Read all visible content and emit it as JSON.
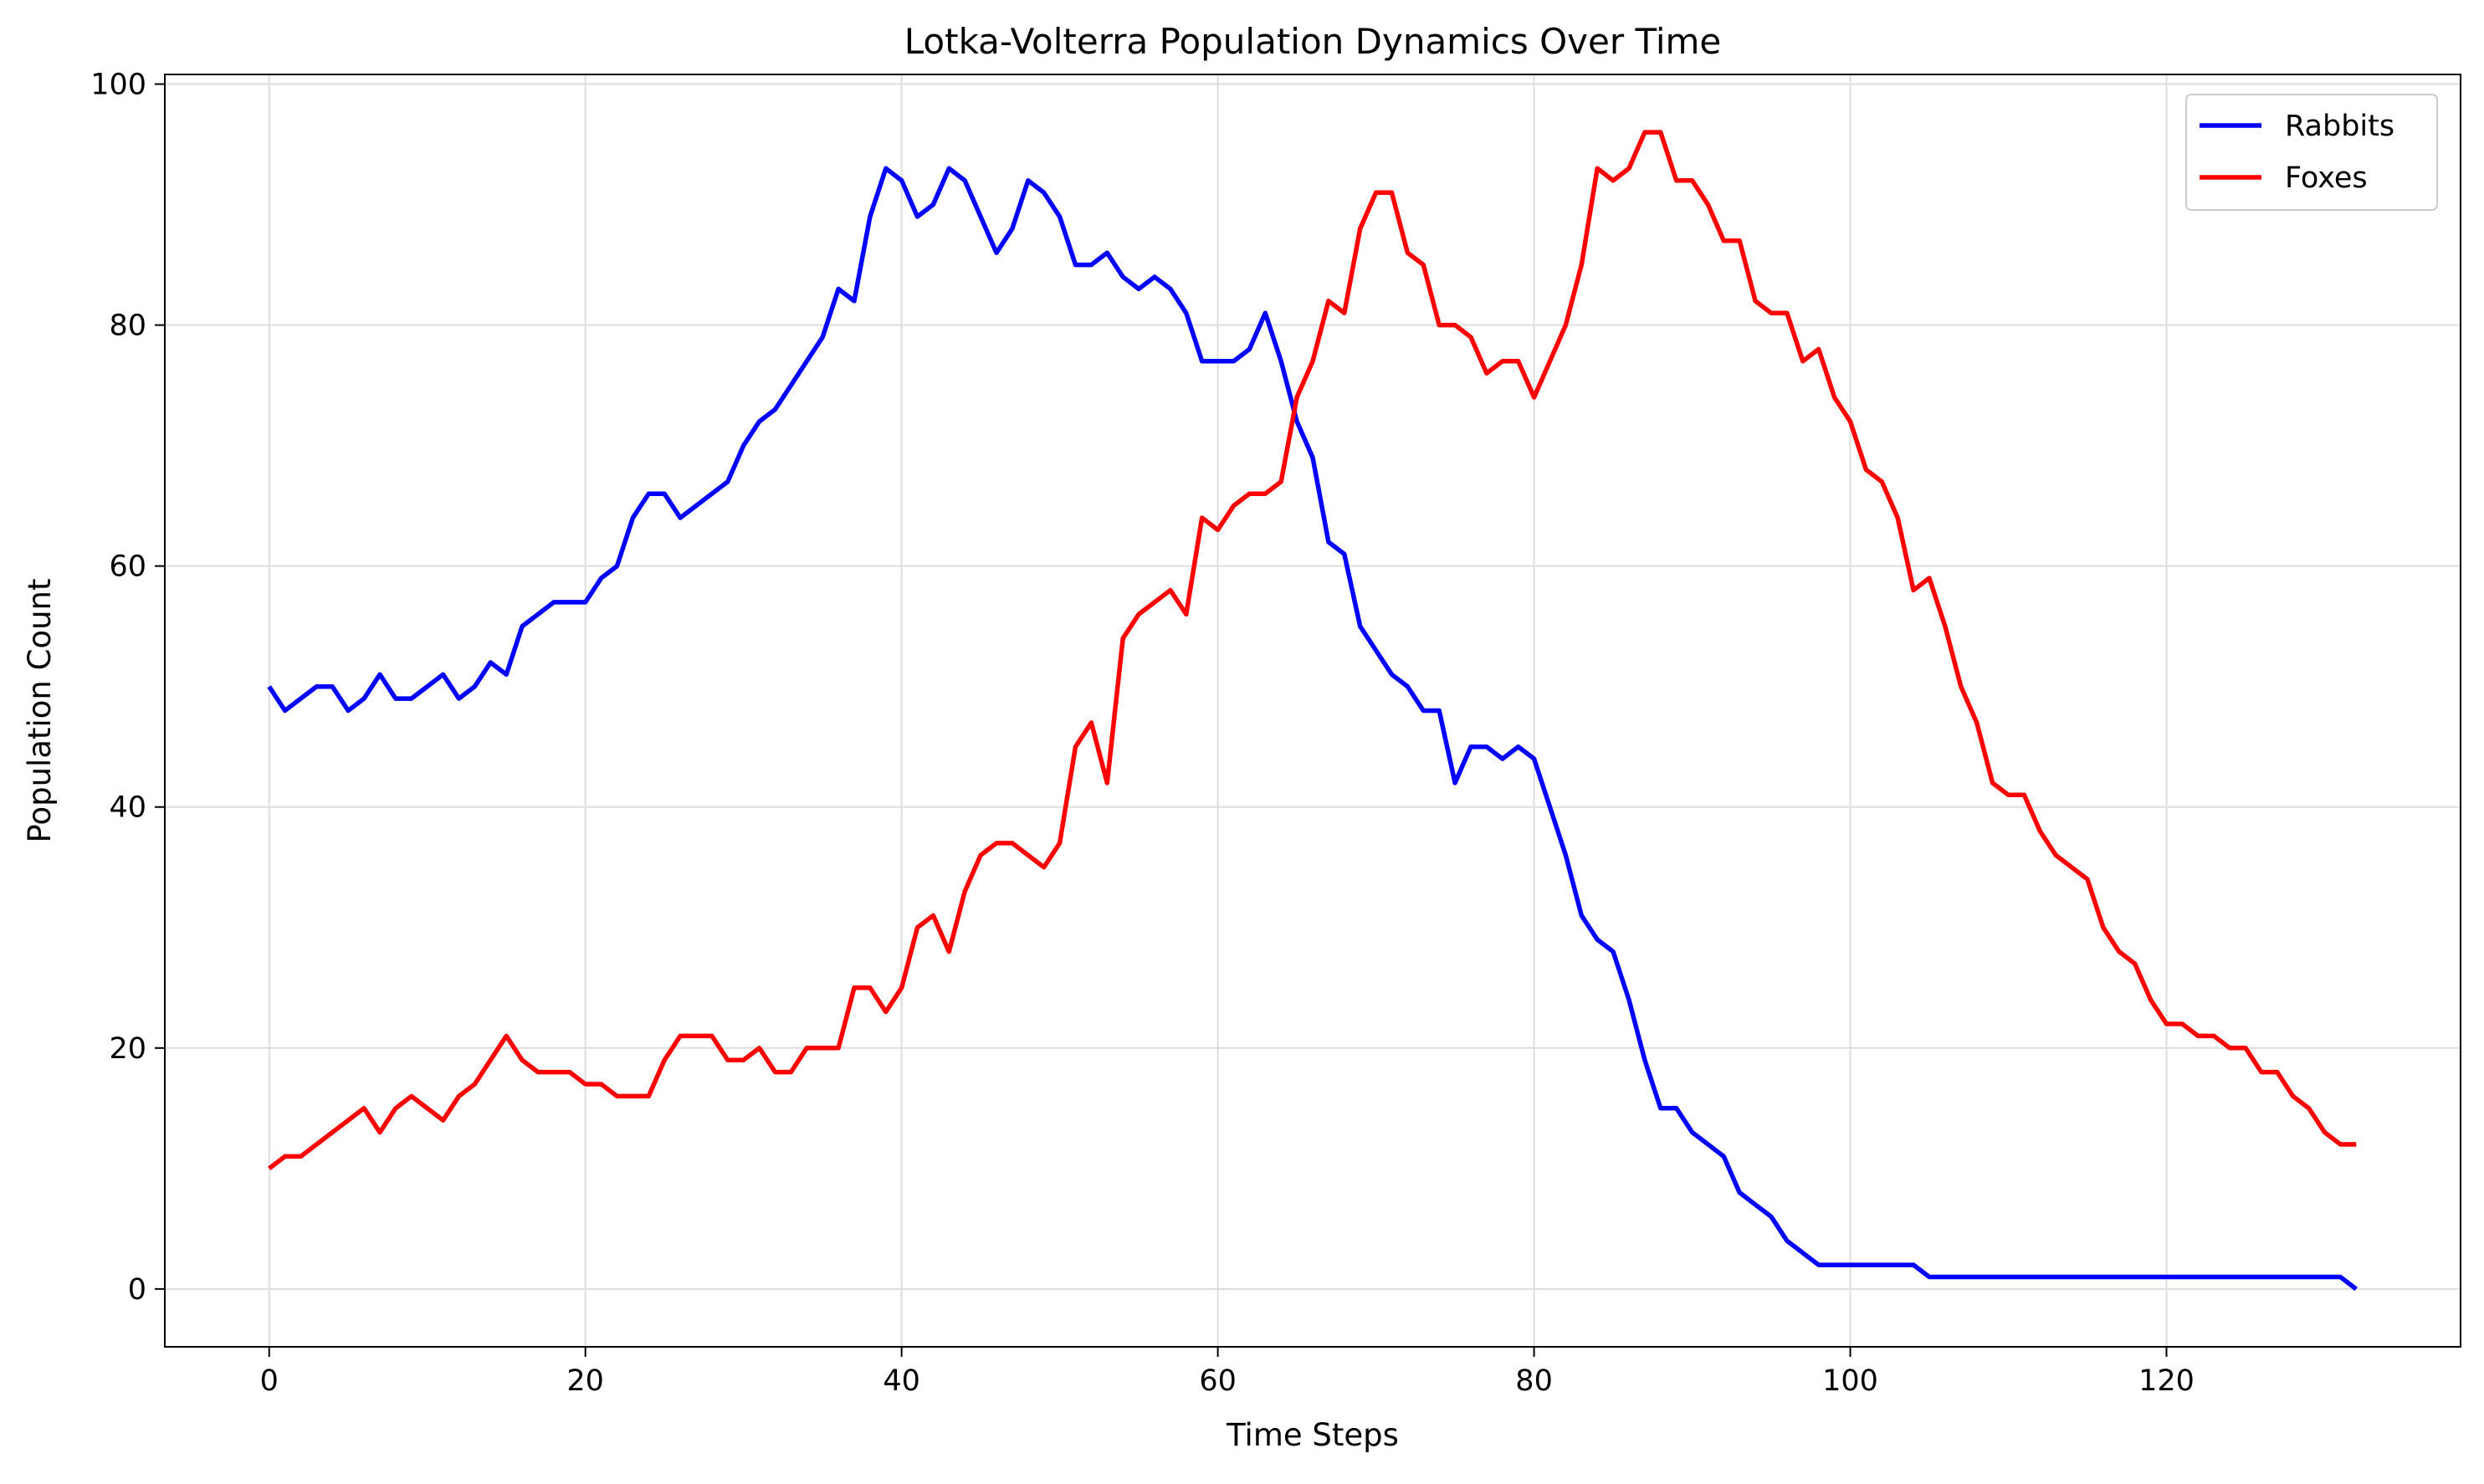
{
  "chart_data": {
    "type": "line",
    "title": "Lotka-Volterra Population Dynamics Over Time",
    "xlabel": "Time Steps",
    "ylabel": "Population Count",
    "xlim": [
      -6.6,
      138.6
    ],
    "ylim": [
      -4.8,
      100.8
    ],
    "xticks": [
      0,
      20,
      40,
      60,
      80,
      100,
      120
    ],
    "yticks": [
      0,
      20,
      40,
      60,
      80,
      100
    ],
    "grid": true,
    "legend": "top-right",
    "x": [
      0,
      1,
      2,
      3,
      4,
      5,
      6,
      7,
      8,
      9,
      10,
      11,
      12,
      13,
      14,
      15,
      16,
      17,
      18,
      19,
      20,
      21,
      22,
      23,
      24,
      25,
      26,
      27,
      28,
      29,
      30,
      31,
      32,
      33,
      34,
      35,
      36,
      37,
      38,
      39,
      40,
      41,
      42,
      43,
      44,
      45,
      46,
      47,
      48,
      49,
      50,
      51,
      52,
      53,
      54,
      55,
      56,
      57,
      58,
      59,
      60,
      61,
      62,
      63,
      64,
      65,
      66,
      67,
      68,
      69,
      70,
      71,
      72,
      73,
      74,
      75,
      76,
      77,
      78,
      79,
      80,
      81,
      82,
      83,
      84,
      85,
      86,
      87,
      88,
      89,
      90,
      91,
      92,
      93,
      94,
      95,
      96,
      97,
      98,
      99,
      100,
      101,
      102,
      103,
      104,
      105,
      106,
      107,
      108,
      109,
      110,
      111,
      112,
      113,
      114,
      115,
      116,
      117,
      118,
      119,
      120,
      121,
      122,
      123,
      124,
      125,
      126,
      127,
      128,
      129,
      130,
      131,
      132
    ],
    "series": [
      {
        "name": "Rabbits",
        "color": "#0000ff",
        "values": [
          50,
          48,
          49,
          50,
          50,
          48,
          49,
          51,
          49,
          49,
          50,
          51,
          49,
          50,
          52,
          51,
          55,
          56,
          57,
          57,
          57,
          59,
          60,
          64,
          66,
          66,
          64,
          65,
          66,
          67,
          70,
          72,
          73,
          75,
          77,
          79,
          83,
          82,
          89,
          93,
          92,
          89,
          90,
          93,
          92,
          89,
          86,
          88,
          92,
          91,
          89,
          85,
          85,
          86,
          84,
          83,
          84,
          83,
          81,
          77,
          77,
          77,
          78,
          81,
          77,
          72,
          69,
          62,
          61,
          55,
          53,
          51,
          50,
          48,
          48,
          42,
          45,
          45,
          44,
          45,
          44,
          40,
          36,
          31,
          29,
          28,
          24,
          19,
          15,
          15,
          13,
          12,
          11,
          8,
          7,
          6,
          4,
          3,
          2,
          2,
          2,
          2,
          2,
          2,
          2,
          1,
          1,
          1,
          1,
          1,
          1,
          1,
          1,
          1,
          1,
          1,
          1,
          1,
          1,
          1,
          1,
          1,
          1,
          1,
          1,
          1,
          1,
          1,
          1,
          1,
          1,
          1,
          0
        ]
      },
      {
        "name": "Foxes",
        "color": "#ff0000",
        "values": [
          10,
          11,
          11,
          12,
          13,
          14,
          15,
          13,
          15,
          16,
          15,
          14,
          16,
          17,
          19,
          21,
          19,
          18,
          18,
          18,
          17,
          17,
          16,
          16,
          16,
          19,
          21,
          21,
          21,
          19,
          19,
          20,
          18,
          18,
          20,
          20,
          20,
          25,
          25,
          23,
          25,
          30,
          31,
          28,
          33,
          36,
          37,
          37,
          36,
          35,
          37,
          45,
          47,
          42,
          54,
          56,
          57,
          58,
          56,
          64,
          63,
          65,
          66,
          66,
          67,
          74,
          77,
          82,
          81,
          88,
          91,
          91,
          86,
          85,
          80,
          80,
          79,
          76,
          77,
          77,
          74,
          77,
          80,
          85,
          93,
          92,
          93,
          96,
          96,
          92,
          92,
          90,
          87,
          87,
          82,
          81,
          81,
          77,
          78,
          74,
          72,
          68,
          67,
          64,
          58,
          59,
          55,
          50,
          47,
          42,
          41,
          41,
          38,
          36,
          35,
          34,
          30,
          28,
          27,
          24,
          22,
          22,
          21,
          21,
          20,
          20,
          18,
          18,
          16,
          15,
          13,
          12,
          12
        ]
      }
    ]
  }
}
